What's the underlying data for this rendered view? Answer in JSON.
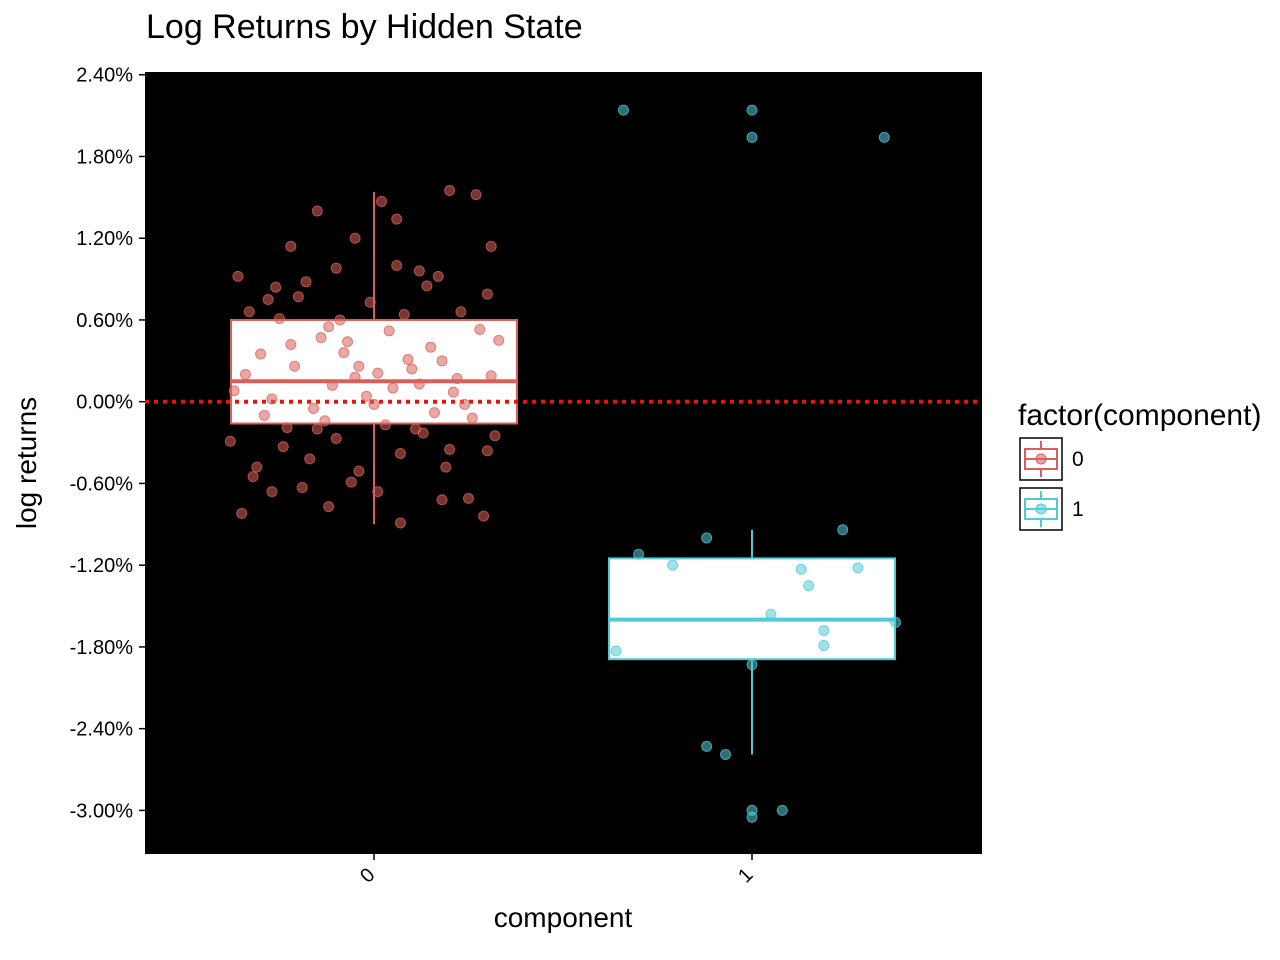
{
  "chart_data": {
    "type": "box",
    "title": "Log Returns by Hidden State",
    "xlabel": "component",
    "ylabel": "log returns",
    "categories": [
      "0",
      "1"
    ],
    "yticks": [
      {
        "value": 2.4,
        "label": "2.40%"
      },
      {
        "value": 1.8,
        "label": "1.80%"
      },
      {
        "value": 1.2,
        "label": "1.20%"
      },
      {
        "value": 0.6,
        "label": "0.60%"
      },
      {
        "value": 0.0,
        "label": "0.00%"
      },
      {
        "value": -0.6,
        "label": "-0.60%"
      },
      {
        "value": -1.2,
        "label": "-1.20%"
      },
      {
        "value": -1.8,
        "label": "-1.80%"
      },
      {
        "value": -2.4,
        "label": "-2.40%"
      },
      {
        "value": -3.0,
        "label": "-3.00%"
      }
    ],
    "ylim": [
      -3.32,
      2.42
    ],
    "reference_line": {
      "y": 0.0,
      "color": "#e8140c",
      "style": "dotted"
    },
    "legend": {
      "title": "factor(component)",
      "position": "right",
      "entries": [
        {
          "label": "0",
          "color": "#d9605a"
        },
        {
          "label": "1",
          "color": "#52cad6"
        }
      ]
    },
    "boxes": [
      {
        "category": "0",
        "q1": -0.16,
        "median": 0.15,
        "q3": 0.6,
        "whisker_low": -0.9,
        "whisker_high": 1.54,
        "color": "#d9605a"
      },
      {
        "category": "1",
        "q1": -1.89,
        "median": -1.6,
        "q3": -1.15,
        "whisker_low": -2.59,
        "whisker_high": -0.94,
        "color": "#52cad6"
      }
    ],
    "series": [
      {
        "name": "0",
        "color": "#d9605a",
        "points": [
          [
            -0.28,
            0.75
          ],
          [
            -0.22,
            1.14
          ],
          [
            -0.15,
            1.4
          ],
          [
            -0.1,
            0.98
          ],
          [
            -0.05,
            1.2
          ],
          [
            0.02,
            1.47
          ],
          [
            0.06,
            1.34
          ],
          [
            0.12,
            0.96
          ],
          [
            0.2,
            1.55
          ],
          [
            0.27,
            1.52
          ],
          [
            0.31,
            1.14
          ],
          [
            -0.36,
            0.92
          ],
          [
            -0.3,
            0.35
          ],
          [
            -0.25,
            0.61
          ],
          [
            -0.18,
            0.88
          ],
          [
            -0.12,
            0.55
          ],
          [
            -0.07,
            0.44
          ],
          [
            -0.01,
            0.73
          ],
          [
            0.04,
            0.52
          ],
          [
            0.09,
            0.31
          ],
          [
            0.15,
            0.4
          ],
          [
            0.22,
            0.17
          ],
          [
            0.28,
            0.53
          ],
          [
            0.33,
            0.45
          ],
          [
            -0.34,
            0.2
          ],
          [
            -0.27,
            0.02
          ],
          [
            -0.21,
            0.26
          ],
          [
            -0.16,
            -0.05
          ],
          [
            -0.11,
            0.12
          ],
          [
            -0.05,
            0.18
          ],
          [
            0.0,
            -0.02
          ],
          [
            0.05,
            0.1
          ],
          [
            0.1,
            0.24
          ],
          [
            0.16,
            -0.08
          ],
          [
            0.21,
            0.07
          ],
          [
            0.26,
            -0.12
          ],
          [
            0.31,
            0.19
          ],
          [
            -0.38,
            -0.29
          ],
          [
            -0.31,
            -0.48
          ],
          [
            -0.24,
            -0.33
          ],
          [
            -0.17,
            -0.42
          ],
          [
            -0.1,
            -0.27
          ],
          [
            -0.04,
            -0.51
          ],
          [
            0.01,
            -0.66
          ],
          [
            0.07,
            -0.38
          ],
          [
            0.13,
            -0.23
          ],
          [
            0.19,
            -0.48
          ],
          [
            0.25,
            -0.71
          ],
          [
            0.3,
            -0.36
          ],
          [
            -0.35,
            -0.82
          ],
          [
            -0.27,
            -0.66
          ],
          [
            -0.19,
            -0.63
          ],
          [
            -0.12,
            -0.77
          ],
          [
            -0.06,
            -0.59
          ],
          [
            0.07,
            -0.89
          ],
          [
            0.18,
            -0.72
          ],
          [
            0.29,
            -0.84
          ],
          [
            -0.33,
            0.66
          ],
          [
            -0.26,
            0.84
          ],
          [
            -0.2,
            0.77
          ],
          [
            -0.14,
            0.47
          ],
          [
            -0.08,
            0.36
          ],
          [
            0.01,
            0.21
          ],
          [
            0.08,
            0.64
          ],
          [
            0.14,
            0.85
          ],
          [
            0.23,
            0.66
          ],
          [
            0.3,
            0.79
          ],
          [
            -0.29,
            -0.1
          ],
          [
            -0.23,
            -0.19
          ],
          [
            -0.13,
            -0.14
          ],
          [
            -0.02,
            0.04
          ],
          [
            0.03,
            -0.17
          ],
          [
            0.11,
            -0.2
          ],
          [
            0.18,
            0.3
          ],
          [
            0.24,
            -0.02
          ],
          [
            0.32,
            -0.25
          ],
          [
            -0.37,
            0.08
          ],
          [
            -0.32,
            -0.55
          ],
          [
            -0.09,
            0.6
          ],
          [
            0.06,
            1.0
          ],
          [
            0.17,
            0.92
          ],
          [
            -0.22,
            0.42
          ],
          [
            0.12,
            0.13
          ],
          [
            -0.15,
            -0.2
          ],
          [
            0.2,
            -0.35
          ],
          [
            -0.04,
            0.26
          ]
        ]
      },
      {
        "name": "1",
        "color": "#52cad6",
        "points": [
          [
            -0.34,
            2.14
          ],
          [
            0.0,
            2.14
          ],
          [
            0.0,
            1.94
          ],
          [
            0.35,
            1.94
          ],
          [
            -0.3,
            -1.12
          ],
          [
            -0.21,
            -1.2
          ],
          [
            -0.12,
            -1.0
          ],
          [
            0.13,
            -1.23
          ],
          [
            0.15,
            -1.35
          ],
          [
            0.24,
            -0.94
          ],
          [
            0.28,
            -1.22
          ],
          [
            -0.36,
            -1.83
          ],
          [
            0.05,
            -1.56
          ],
          [
            0.0,
            -1.93
          ],
          [
            0.19,
            -1.68
          ],
          [
            0.19,
            -1.79
          ],
          [
            0.38,
            -1.62
          ],
          [
            -0.12,
            -2.53
          ],
          [
            -0.07,
            -2.59
          ],
          [
            0.0,
            -3.0
          ],
          [
            0.0,
            -3.05
          ],
          [
            0.08,
            -3.0
          ]
        ]
      }
    ]
  }
}
